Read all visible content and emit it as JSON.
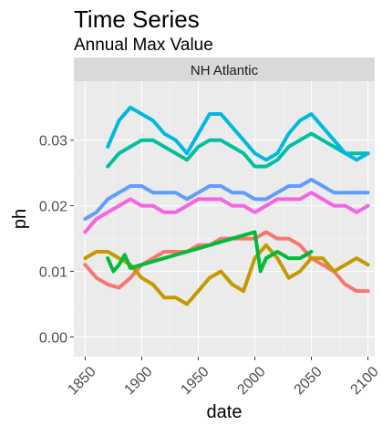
{
  "chart_data": {
    "type": "line",
    "title": "Time Series",
    "subtitle": "Annual Max Value",
    "facet_label": "NH Atlantic",
    "xlabel": "date",
    "ylabel": "ph",
    "xlim": [
      1840,
      2106
    ],
    "ylim": [
      -0.003,
      0.039
    ],
    "x_ticks": [
      1850,
      1900,
      1950,
      2000,
      2050,
      2100
    ],
    "x_tick_labels": [
      "1850",
      "1900",
      "1950",
      "2000",
      "2050",
      "2100"
    ],
    "y_ticks": [
      0.0,
      0.01,
      0.02,
      0.03
    ],
    "y_tick_labels": [
      "0.00",
      "0.01",
      "0.02",
      "0.03"
    ],
    "grid": true,
    "legend": "none",
    "background": "#ebebeb",
    "strip_background": "#d9d9d9",
    "series": [
      {
        "color": "#F8766D",
        "x": [
          1850,
          1860,
          1870,
          1880,
          1890,
          1900,
          1910,
          1920,
          1930,
          1940,
          1950,
          1960,
          1970,
          1980,
          1990,
          2000,
          2010,
          2020,
          2030,
          2040,
          2050,
          2060,
          2070,
          2080,
          2090,
          2100
        ],
        "values": [
          0.011,
          0.009,
          0.008,
          0.0075,
          0.009,
          0.011,
          0.012,
          0.013,
          0.013,
          0.013,
          0.014,
          0.014,
          0.015,
          0.015,
          0.015,
          0.015,
          0.016,
          0.015,
          0.015,
          0.014,
          0.012,
          0.011,
          0.01,
          0.008,
          0.007,
          0.007
        ]
      },
      {
        "color": "#C49A00",
        "x": [
          1850,
          1860,
          1870,
          1880,
          1890,
          1900,
          1910,
          1920,
          1930,
          1940,
          1950,
          1960,
          1970,
          1980,
          1990,
          2000,
          2010,
          2020,
          2030,
          2040,
          2050,
          2060,
          2070,
          2080,
          2090,
          2100
        ],
        "values": [
          0.012,
          0.013,
          0.013,
          0.012,
          0.011,
          0.009,
          0.008,
          0.006,
          0.006,
          0.005,
          0.007,
          0.009,
          0.01,
          0.008,
          0.007,
          0.012,
          0.014,
          0.012,
          0.009,
          0.01,
          0.012,
          0.012,
          0.01,
          0.011,
          0.012,
          0.011
        ]
      },
      {
        "color": "#00BA38",
        "x": [
          1870,
          1875,
          1880,
          1885,
          1890,
          1900,
          1910,
          1920,
          1930,
          1940,
          1950,
          1960,
          1970,
          1980,
          1990,
          2000,
          2005,
          2010,
          2020,
          2030,
          2040,
          2050
        ],
        "values": [
          0.012,
          0.01,
          0.011,
          0.0125,
          0.0105,
          0.011,
          0.0115,
          0.012,
          0.0125,
          0.013,
          0.0135,
          0.014,
          0.0145,
          0.015,
          0.0155,
          0.016,
          0.01,
          0.012,
          0.013,
          0.012,
          0.012,
          0.013
        ]
      },
      {
        "color": "#00C19F",
        "x": [
          1870,
          1880,
          1890,
          1900,
          1910,
          1920,
          1930,
          1940,
          1950,
          1960,
          1970,
          1980,
          1990,
          2000,
          2010,
          2020,
          2030,
          2040,
          2050,
          2060,
          2070,
          2080,
          2090,
          2100
        ],
        "values": [
          0.026,
          0.028,
          0.029,
          0.03,
          0.03,
          0.029,
          0.028,
          0.027,
          0.029,
          0.03,
          0.03,
          0.029,
          0.028,
          0.026,
          0.026,
          0.027,
          0.029,
          0.03,
          0.031,
          0.03,
          0.029,
          0.028,
          0.028,
          0.028
        ]
      },
      {
        "color": "#00B9E3",
        "x": [
          1870,
          1880,
          1890,
          1900,
          1910,
          1920,
          1930,
          1940,
          1950,
          1960,
          1970,
          1980,
          1990,
          2000,
          2010,
          2020,
          2030,
          2040,
          2050,
          2060,
          2070,
          2080,
          2090,
          2100
        ],
        "values": [
          0.029,
          0.033,
          0.035,
          0.034,
          0.033,
          0.031,
          0.03,
          0.028,
          0.031,
          0.034,
          0.034,
          0.032,
          0.03,
          0.028,
          0.027,
          0.028,
          0.031,
          0.033,
          0.034,
          0.032,
          0.03,
          0.028,
          0.027,
          0.028
        ]
      },
      {
        "color": "#619CFF",
        "x": [
          1850,
          1860,
          1870,
          1880,
          1890,
          1900,
          1910,
          1920,
          1930,
          1940,
          1950,
          1960,
          1970,
          1980,
          1990,
          2000,
          2010,
          2020,
          2030,
          2040,
          2050,
          2060,
          2070,
          2080,
          2090,
          2100
        ],
        "values": [
          0.018,
          0.019,
          0.021,
          0.022,
          0.023,
          0.023,
          0.022,
          0.022,
          0.022,
          0.021,
          0.022,
          0.023,
          0.023,
          0.022,
          0.022,
          0.021,
          0.021,
          0.022,
          0.023,
          0.023,
          0.024,
          0.023,
          0.022,
          0.022,
          0.022,
          0.022
        ]
      },
      {
        "color": "#F564E3",
        "x": [
          1850,
          1860,
          1870,
          1880,
          1890,
          1900,
          1910,
          1920,
          1930,
          1940,
          1950,
          1960,
          1970,
          1980,
          1990,
          2000,
          2010,
          2020,
          2030,
          2040,
          2050,
          2060,
          2070,
          2080,
          2090,
          2100
        ],
        "values": [
          0.016,
          0.018,
          0.019,
          0.02,
          0.021,
          0.02,
          0.02,
          0.019,
          0.019,
          0.02,
          0.021,
          0.021,
          0.021,
          0.02,
          0.02,
          0.019,
          0.02,
          0.021,
          0.021,
          0.021,
          0.022,
          0.021,
          0.02,
          0.02,
          0.019,
          0.02
        ]
      }
    ]
  }
}
